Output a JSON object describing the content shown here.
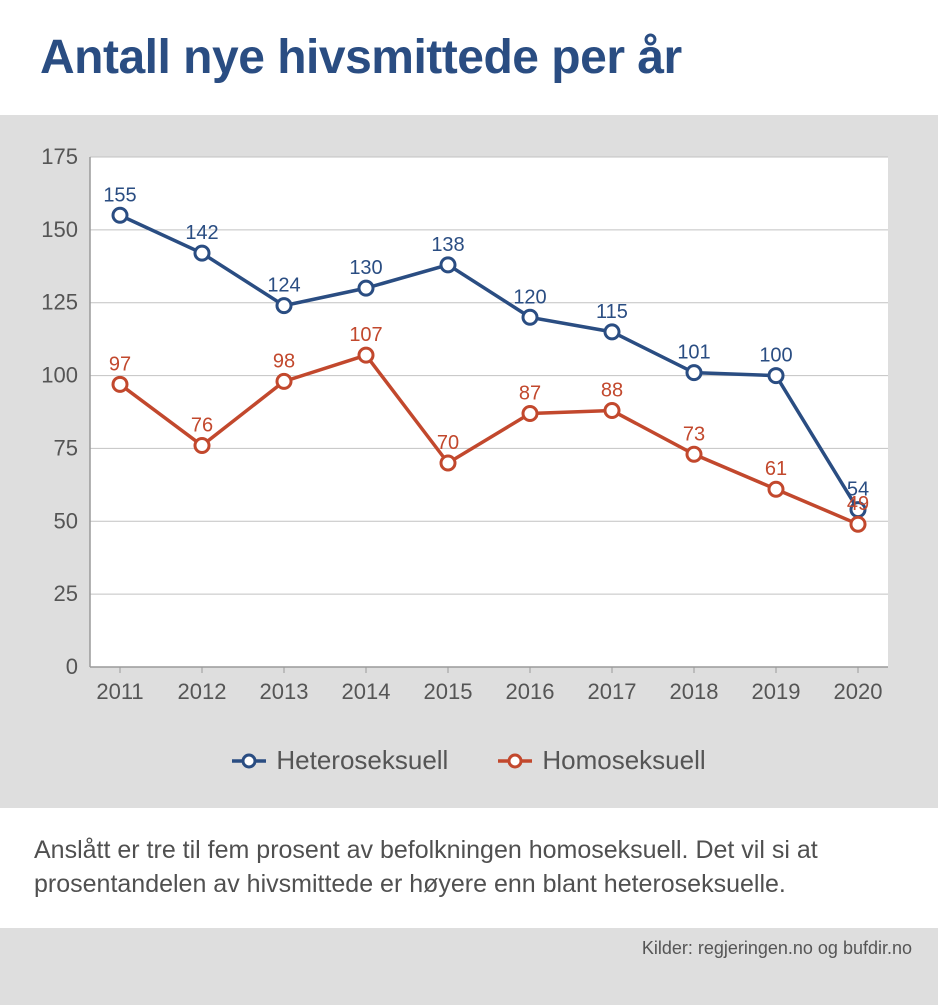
{
  "title": "Antall nye hivsmittede per år",
  "caption": "Anslått er tre til fem prosent av befolkningen homoseksuell. Det vil si at prosentandelen av hivsmittede er høyere enn blant heteroseksuelle.",
  "source": "Kilder: regjeringen.no og bufdir.no",
  "chart": {
    "type": "line",
    "background_color": "#dedede",
    "plot_background": "#ffffff",
    "grid_color": "#c2c2c2",
    "axis_color": "#9a9a9a",
    "tick_font_size": 22,
    "tick_color": "#555555",
    "datalabel_font_size": 20,
    "x": {
      "categories": [
        "2011",
        "2012",
        "2013",
        "2014",
        "2015",
        "2016",
        "2017",
        "2018",
        "2019",
        "2020"
      ]
    },
    "y": {
      "min": 0,
      "max": 175,
      "step": 25
    },
    "series": [
      {
        "name": "Heteroseksuell",
        "color": "#2a4d82",
        "marker_fill": "#ffffff",
        "marker_stroke": "#2a4d82",
        "marker_radius": 7,
        "line_width": 3.5,
        "points": [
          155,
          142,
          124,
          130,
          138,
          120,
          115,
          101,
          100,
          54
        ]
      },
      {
        "name": "Homoseksuell",
        "color": "#c2482d",
        "marker_fill": "#ffffff",
        "marker_stroke": "#c2482d",
        "marker_radius": 7,
        "line_width": 3.5,
        "points": [
          97,
          76,
          98,
          107,
          70,
          87,
          88,
          73,
          61,
          49
        ]
      }
    ],
    "last_x_overlap_labels": [
      "54",
      "49"
    ]
  },
  "legend": {
    "items": [
      {
        "label": "Heteroseksuell",
        "color": "#2a4d82"
      },
      {
        "label": "Homoseksuell",
        "color": "#c2482d"
      }
    ]
  }
}
